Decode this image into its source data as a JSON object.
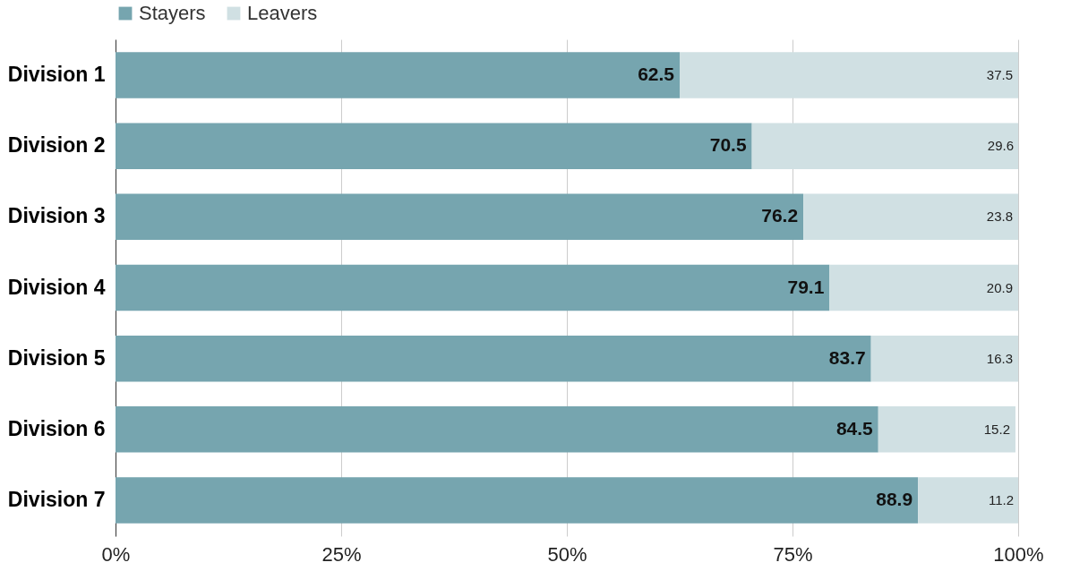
{
  "chart_data": {
    "type": "bar",
    "orientation": "horizontal",
    "stacked": true,
    "categories": [
      "Division 1",
      "Division 2",
      "Division 3",
      "Division 4",
      "Division 5",
      "Division 6",
      "Division 7"
    ],
    "series": [
      {
        "name": "Stayers",
        "color": "#76a5af",
        "values": [
          62.5,
          70.5,
          76.2,
          79.1,
          83.7,
          84.5,
          88.9
        ]
      },
      {
        "name": "Leavers",
        "color": "#d0e0e3",
        "values": [
          37.5,
          29.6,
          23.8,
          20.9,
          16.3,
          15.2,
          11.2
        ]
      }
    ],
    "xlim": [
      0,
      100
    ],
    "xticks": [
      {
        "value": 0,
        "label": "0%"
      },
      {
        "value": 25,
        "label": "25%"
      },
      {
        "value": 50,
        "label": "50%"
      },
      {
        "value": 75,
        "label": "75%"
      },
      {
        "value": 100,
        "label": "100%"
      }
    ],
    "data_labels": true,
    "grid": "x",
    "legend": "top"
  }
}
